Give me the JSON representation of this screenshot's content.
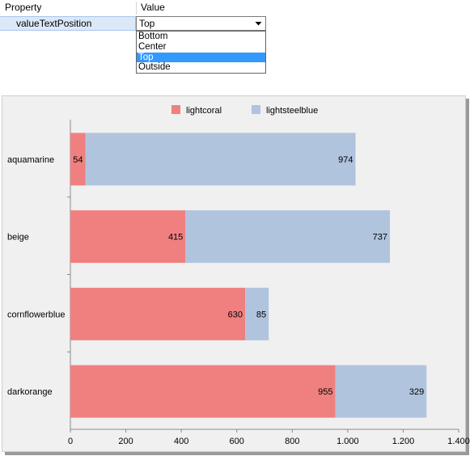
{
  "property_grid": {
    "header": {
      "property_label": "Property",
      "value_label": "Value"
    },
    "row": {
      "name": "valueTextPosition",
      "value": "Top"
    },
    "dropdown": {
      "options": [
        "Bottom",
        "Center",
        "Top",
        "Outside"
      ],
      "selected": "Top"
    }
  },
  "chart_data": {
    "type": "bar",
    "orientation": "horizontal",
    "stacked": true,
    "categories": [
      "aquamarine",
      "beige",
      "cornflowerblue",
      "darkorange"
    ],
    "series": [
      {
        "name": "lightcoral",
        "color": "#f08080",
        "values": [
          54,
          415,
          630,
          955
        ]
      },
      {
        "name": "lightsteelblue",
        "color": "#b0c4de",
        "values": [
          974,
          737,
          85,
          329
        ]
      }
    ],
    "x_ticks": [
      "0",
      "200",
      "400",
      "600",
      "800",
      "1.000",
      "1.200",
      "1.400"
    ],
    "xlim": [
      0,
      1400
    ],
    "legend_position": "top-center",
    "grid": false
  }
}
